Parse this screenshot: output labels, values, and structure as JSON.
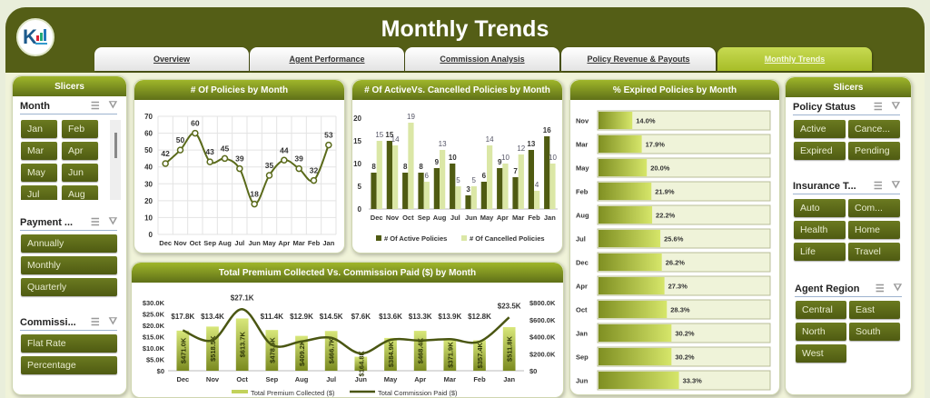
{
  "header": {
    "title": "Monthly Trends",
    "tabs": [
      {
        "label": "Overview",
        "active": false
      },
      {
        "label": "Agent Performance",
        "active": false
      },
      {
        "label": "Commission Analysis",
        "active": false
      },
      {
        "label": "Policy Revenue & Payouts",
        "active": false
      },
      {
        "label": "Monthly Trends",
        "active": true
      }
    ]
  },
  "left_slicers": {
    "title": "Slicers",
    "month": {
      "label": "Month",
      "items": [
        "Jan",
        "Feb",
        "Mar",
        "Apr",
        "May",
        "Jun",
        "Jul",
        "Aug"
      ]
    },
    "payment": {
      "label": "Payment ...",
      "items": [
        "Annually",
        "Monthly",
        "Quarterly"
      ]
    },
    "commission": {
      "label": "Commissi...",
      "items": [
        "Flat Rate",
        "Percentage"
      ]
    }
  },
  "right_slicers": {
    "title": "Slicers",
    "policy_status": {
      "label": "Policy Status",
      "items": [
        "Active",
        "Cance...",
        "Expired",
        "Pending"
      ]
    },
    "insurance_type": {
      "label": "Insurance T...",
      "items": [
        "Auto",
        "Com...",
        "Health",
        "Home",
        "Life",
        "Travel"
      ]
    },
    "agent_region": {
      "label": "Agent Region",
      "items": [
        "Central",
        "East",
        "North",
        "South",
        "West"
      ]
    }
  },
  "colors": {
    "header": "#545e16",
    "dark_green": "#4f5b12",
    "light_green": "#dbe7a6",
    "accent": "#a7bd28"
  },
  "chart_data": [
    {
      "type": "line",
      "title": "# Of Policies by Month",
      "categories": [
        "Dec",
        "Nov",
        "Oct",
        "Sep",
        "Aug",
        "Jul",
        "Jun",
        "May",
        "Apr",
        "Mar",
        "Feb",
        "Jan"
      ],
      "values": [
        42,
        50,
        60,
        43,
        45,
        39,
        18,
        35,
        44,
        39,
        32,
        53
      ],
      "yticks": [
        "0",
        "10",
        "20",
        "30",
        "40",
        "50",
        "60",
        "70"
      ],
      "ylim": [
        0,
        70
      ],
      "grid": true
    },
    {
      "type": "bar",
      "title": "# Of ActiveVs. Cancelled Policies by Month",
      "categories": [
        "Dec",
        "Nov",
        "Oct",
        "Sep",
        "Aug",
        "Jul",
        "Jun",
        "May",
        "Apr",
        "Mar",
        "Feb",
        "Jan"
      ],
      "series": [
        {
          "name": "# Of Active Policies",
          "values": [
            8,
            15,
            8,
            8,
            9,
            10,
            3,
            6,
            9,
            7,
            13,
            16
          ]
        },
        {
          "name": "# Of Cancelled Policies",
          "values": [
            15,
            14,
            19,
            6,
            13,
            5,
            5,
            14,
            10,
            12,
            4,
            10
          ]
        }
      ],
      "yticks": [
        "0",
        "5",
        "10",
        "15",
        "20"
      ],
      "ylim": [
        0,
        20
      ],
      "legend_position": "bottom"
    },
    {
      "type": "bar",
      "title": "% Expired Policies by Month",
      "orientation": "horizontal",
      "categories": [
        "Nov",
        "Mar",
        "May",
        "Feb",
        "Aug",
        "Jul",
        "Dec",
        "Apr",
        "Oct",
        "Jan",
        "Sep",
        "Jun"
      ],
      "values": [
        14.0,
        17.9,
        20.0,
        21.9,
        22.2,
        25.6,
        26.2,
        27.3,
        28.3,
        30.2,
        30.2,
        33.3
      ],
      "labels": [
        "14.0%",
        "17.9%",
        "20.0%",
        "21.9%",
        "22.2%",
        "25.6%",
        "26.2%",
        "27.3%",
        "28.3%",
        "30.2%",
        "30.2%",
        "33.3%"
      ]
    },
    {
      "type": "bar",
      "title": "Total Premium Collected  Vs. Commission Paid ($) by Month",
      "categories": [
        "Dec",
        "Nov",
        "Oct",
        "Sep",
        "Aug",
        "Jul",
        "Jun",
        "May",
        "Apr",
        "Mar",
        "Feb",
        "Jan"
      ],
      "series": [
        {
          "name": "Total Premium Collected ($)",
          "type": "bar",
          "axis": "right",
          "values": [
            471.0,
            518.5,
            613.7,
            478.5,
            409.2,
            466.7,
            164.8,
            384.9,
            468.4,
            371.9,
            357.4,
            511.8
          ],
          "labels": [
            "$471.0K",
            "$518.5K",
            "$613.7K",
            "$478.5K",
            "$409.2K",
            "$466.7K",
            "$164.8K",
            "$384.9K",
            "$468.4K",
            "$371.9K",
            "$357.4K",
            "$511.8K"
          ]
        },
        {
          "name": "Total Commission Paid ($)",
          "type": "line",
          "axis": "left",
          "values": [
            17.8,
            13.4,
            27.1,
            11.4,
            12.9,
            14.5,
            7.6,
            13.6,
            13.3,
            13.9,
            12.8,
            23.5
          ],
          "labels": [
            "$17.8K",
            "$13.4K",
            "$27.1K",
            "$11.4K",
            "$12.9K",
            "$14.5K",
            "$7.6K",
            "$13.6K",
            "$13.3K",
            "$13.9K",
            "$12.8K",
            "$23.5K"
          ]
        }
      ],
      "yticks_left": [
        "$0",
        "$5.0K",
        "$10.0K",
        "$15.0K",
        "$20.0K",
        "$25.0K",
        "$30.0K"
      ],
      "yticks_right": [
        "$0",
        "$200.0K",
        "$400.0K",
        "$600.0K",
        "$800.0K"
      ],
      "ylim_left": [
        0,
        30
      ],
      "ylim_right": [
        0,
        800
      ]
    }
  ]
}
